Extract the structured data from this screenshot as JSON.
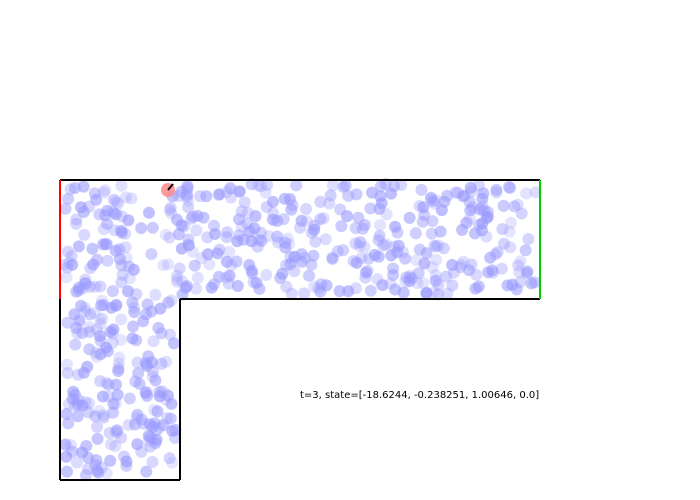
{
  "status": {
    "text": "t=3, state=[-18.6244, -0.238251, 1.00646, 0.0]"
  },
  "colors": {
    "background": "#ffffff",
    "wall": "#000000",
    "start_edge": "#ff0000",
    "goal_edge": "#00cc00",
    "obstacle": "#9999ff",
    "agent": "#ff8888",
    "heading": "#000000"
  },
  "obstacles": {
    "shape": "circle",
    "approx_count": 600
  },
  "agent": {
    "shape": "circle",
    "heading_icon": "heading-line"
  }
}
